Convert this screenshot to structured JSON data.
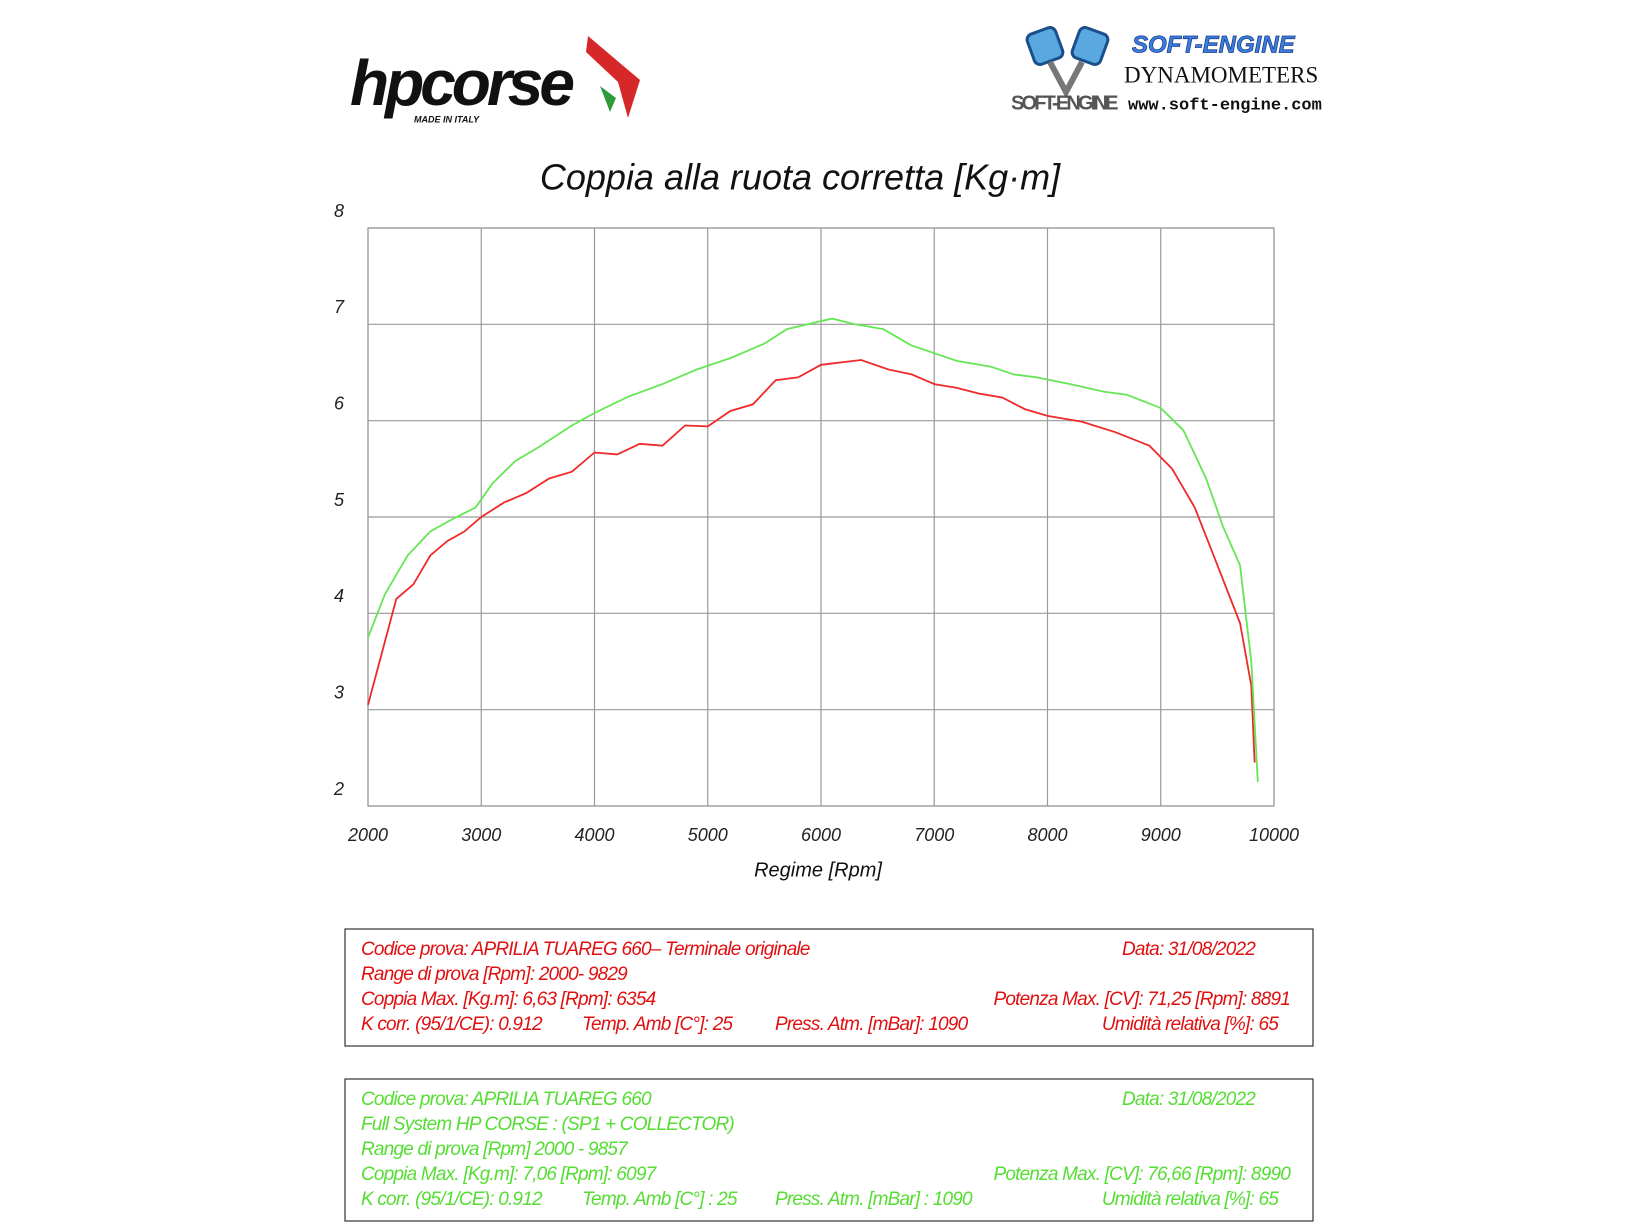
{
  "header": {
    "brand": "hpcorse",
    "brand_tagline": "MADE IN ITALY",
    "dyno_brand": "SOFT-ENGINE",
    "dyno_logo_text": "SOFT-ENGINE",
    "dyno_subtitle": "DYNAMOMETERS",
    "dyno_url": "www.soft-engine.com"
  },
  "chart_data": {
    "type": "line",
    "title": "Coppia alla ruota corretta [Kg·m]",
    "x_label": "Regime [Rpm]",
    "xlim": [
      2000,
      10000
    ],
    "xticks": [
      2000,
      3000,
      4000,
      5000,
      6000,
      7000,
      8000,
      9000,
      10000
    ],
    "ylim": [
      2,
      8
    ],
    "yticks": [
      2,
      3,
      4,
      5,
      6,
      7,
      8
    ],
    "grid": true,
    "series": [
      {
        "color": "#ee2a2a",
        "x": [
          2000,
          2250,
          2400,
          2550,
          2700,
          2850,
          3000,
          3200,
          3400,
          3600,
          3800,
          4000,
          4200,
          4400,
          4600,
          4800,
          5000,
          5200,
          5400,
          5600,
          5800,
          6000,
          6354,
          6600,
          6800,
          7000,
          7200,
          7400,
          7600,
          7800,
          8000,
          8300,
          8600,
          8900,
          9100,
          9300,
          9500,
          9700,
          9800,
          9829
        ],
        "values": [
          3.05,
          4.15,
          4.3,
          4.6,
          4.75,
          4.85,
          5.0,
          5.15,
          5.25,
          5.4,
          5.47,
          5.67,
          5.65,
          5.76,
          5.74,
          5.95,
          5.94,
          6.1,
          6.17,
          6.42,
          6.45,
          6.58,
          6.63,
          6.53,
          6.48,
          6.38,
          6.34,
          6.28,
          6.24,
          6.12,
          6.05,
          5.99,
          5.88,
          5.74,
          5.5,
          5.1,
          4.5,
          3.9,
          3.25,
          2.45
        ]
      },
      {
        "color": "#66e655",
        "x": [
          2000,
          2150,
          2350,
          2550,
          2750,
          2950,
          3100,
          3300,
          3500,
          3800,
          4000,
          4300,
          4600,
          4900,
          5200,
          5500,
          5700,
          6097,
          6300,
          6550,
          6800,
          7000,
          7200,
          7500,
          7700,
          7900,
          8200,
          8500,
          8700,
          9000,
          9200,
          9400,
          9550,
          9700,
          9800,
          9857
        ],
        "values": [
          3.75,
          4.2,
          4.6,
          4.85,
          4.98,
          5.1,
          5.35,
          5.58,
          5.72,
          5.95,
          6.08,
          6.25,
          6.38,
          6.53,
          6.65,
          6.8,
          6.95,
          7.06,
          7.0,
          6.95,
          6.78,
          6.7,
          6.62,
          6.56,
          6.48,
          6.45,
          6.38,
          6.3,
          6.27,
          6.13,
          5.9,
          5.4,
          4.9,
          4.5,
          3.5,
          2.25
        ]
      }
    ]
  },
  "info_boxes": [
    {
      "color": "#e01010",
      "lines": [
        [
          "Codice prova: APRILIA TUAREG 660– Terminale originale",
          "Data: 31/08/2022"
        ],
        [
          "Range di prova [Rpm]: 2000- 9829"
        ],
        [
          "Coppia Max. [Kg.m]: 6,63 [Rpm]: 6354",
          "Potenza Max. [CV]: 71,25 [Rpm]: 8891"
        ],
        [
          "K corr. (95/1/CE): 0.912",
          "Temp. Amb [C°]: 25",
          "Press. Atm. [mBar]: 1090",
          "Umidità relativa [%]: 65"
        ]
      ]
    },
    {
      "color": "#55dd33",
      "lines": [
        [
          "Codice prova: APRILIA TUAREG 660",
          "Data: 31/08/2022"
        ],
        [
          "Full System HP CORSE : (SP1 + COLLECTOR)"
        ],
        [
          "Range di prova [Rpm] 2000 - 9857"
        ],
        [
          "Coppia Max. [Kg.m]: 7,06 [Rpm]: 6097",
          "Potenza Max. [CV]: 76,66 [Rpm]: 8990"
        ],
        [
          "K corr. (95/1/CE): 0.912",
          "Temp. Amb [C°] : 25",
          "Press. Atm. [mBar] : 1090",
          "Umidità relativa [%]: 65"
        ]
      ]
    }
  ]
}
